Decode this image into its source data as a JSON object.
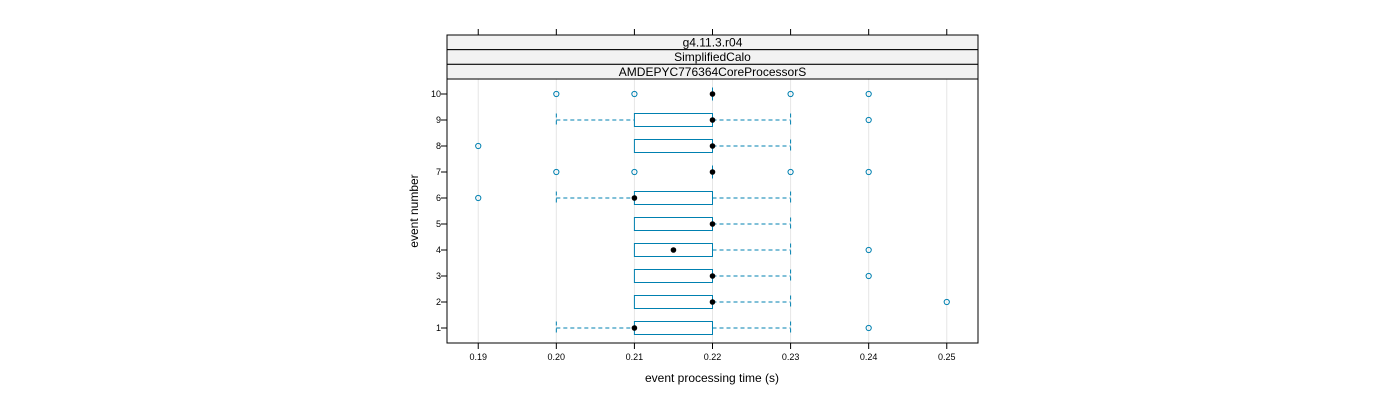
{
  "chart_data": {
    "type": "box",
    "orientation": "horizontal",
    "panel_strips": [
      "g4.11.3.r04",
      "SimplifiedCalo",
      "AMDEPYC776364CoreProcessorS"
    ],
    "xlabel": "event processing time (s)",
    "ylabel": "event number",
    "xlim": [
      0.186,
      0.254
    ],
    "x_ticks": [
      "0.19",
      "0.20",
      "0.21",
      "0.22",
      "0.23",
      "0.24",
      "0.25"
    ],
    "y_ticks": [
      "1",
      "2",
      "3",
      "4",
      "5",
      "6",
      "7",
      "8",
      "9",
      "10"
    ],
    "grid": "vertical",
    "colors": {
      "box": "#0080B0",
      "whisker": "#0080B0",
      "median_dot": "#000000",
      "outlier": "#0080B0",
      "grid": "#e6e6e6",
      "strip_bg": "#f2f2f2"
    },
    "boxes": [
      {
        "event": "1",
        "lower_whisker": 0.2,
        "q1": 0.21,
        "median": 0.21,
        "q3": 0.22,
        "upper_whisker": 0.23,
        "outliers": [
          0.24
        ]
      },
      {
        "event": "2",
        "lower_whisker": 0.21,
        "q1": 0.21,
        "median": 0.22,
        "q3": 0.22,
        "upper_whisker": 0.23,
        "outliers": [
          0.25
        ]
      },
      {
        "event": "3",
        "lower_whisker": 0.21,
        "q1": 0.21,
        "median": 0.22,
        "q3": 0.22,
        "upper_whisker": 0.23,
        "outliers": [
          0.24
        ]
      },
      {
        "event": "4",
        "lower_whisker": 0.21,
        "q1": 0.21,
        "median": 0.215,
        "q3": 0.22,
        "upper_whisker": 0.23,
        "outliers": [
          0.24
        ]
      },
      {
        "event": "5",
        "lower_whisker": 0.21,
        "q1": 0.21,
        "median": 0.22,
        "q3": 0.22,
        "upper_whisker": 0.23,
        "outliers": []
      },
      {
        "event": "6",
        "lower_whisker": 0.2,
        "q1": 0.21,
        "median": 0.21,
        "q3": 0.22,
        "upper_whisker": 0.23,
        "outliers": [
          0.19
        ]
      },
      {
        "event": "7",
        "lower_whisker": 0.22,
        "q1": 0.22,
        "median": 0.22,
        "q3": 0.22,
        "upper_whisker": 0.22,
        "outliers": [
          0.2,
          0.21,
          0.23,
          0.24
        ]
      },
      {
        "event": "8",
        "lower_whisker": 0.21,
        "q1": 0.21,
        "median": 0.22,
        "q3": 0.22,
        "upper_whisker": 0.23,
        "outliers": [
          0.19
        ]
      },
      {
        "event": "9",
        "lower_whisker": 0.2,
        "q1": 0.21,
        "median": 0.22,
        "q3": 0.22,
        "upper_whisker": 0.23,
        "outliers": [
          0.24
        ]
      },
      {
        "event": "10",
        "lower_whisker": 0.22,
        "q1": 0.22,
        "median": 0.22,
        "q3": 0.22,
        "upper_whisker": 0.22,
        "outliers": [
          0.2,
          0.21,
          0.23,
          0.24
        ]
      }
    ]
  }
}
